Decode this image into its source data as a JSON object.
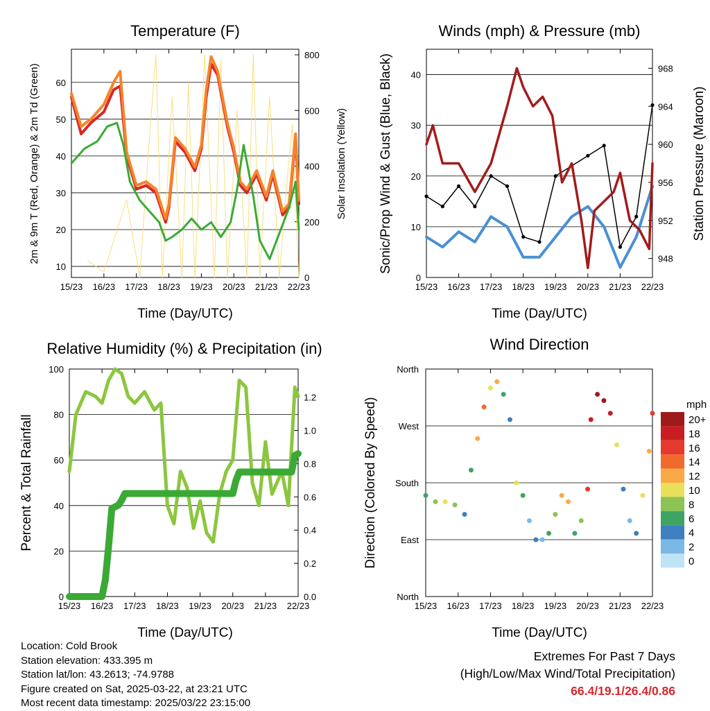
{
  "panels": {
    "temperature": {
      "title": "Temperature (F)",
      "ylabel_left": "2m & 9m T (Red, Orange) & 2m Td (Green)",
      "ylabel_right": "Solar Insolation (Yellow)",
      "xlabel": "Time (Day/UTC)"
    },
    "winds": {
      "title": "Winds (mph) & Pressure (mb)",
      "ylabel_left": "Sonic/Prop Wind & Gust (Blue, Black)",
      "ylabel_right": "Station Pressure (Maroon)",
      "xlabel": "Time (Day/UTC)"
    },
    "humidity": {
      "title": "Relative Humidity (%) & Precipitation (in)",
      "ylabel_left": "Percent & Total Rainfall",
      "xlabel": "Time (Day/UTC)"
    },
    "direction": {
      "title": "Wind Direction",
      "ylabel_left": "Direction (Colored By Speed)",
      "xlabel": "Time (Day/UTC)",
      "legend_title": "mph",
      "legend_labels": [
        "20+",
        "18",
        "16",
        "14",
        "12",
        "10",
        "8",
        "6",
        "4",
        "2",
        "0"
      ],
      "legend_colors": [
        "#9e1a1a",
        "#c81e23",
        "#e53a2d",
        "#f06a2e",
        "#fba947",
        "#e8df5a",
        "#8cc354",
        "#3fa463",
        "#3f7fc0",
        "#7cb8e6",
        "#bde3f5"
      ]
    }
  },
  "footer": {
    "location": "Location: Cold Brook",
    "elevation": "Station elevation: 433.395 m",
    "latlon": "Station lat/lon: 43.2613; -74.9788",
    "created": "Figure created on Sat, 2025-03-22, at 23:21 UTC",
    "recent": "Most recent data timestamp: 2025/03/22 23:15:00",
    "extremes_title": "Extremes For Past 7 Days",
    "extremes_sub": "(High/Low/Max Wind/Total Precipitation)",
    "extremes_values": "66.4/19.1/26.4/0.86"
  },
  "chart_data": [
    {
      "type": "line",
      "id": "temperature",
      "x_ticks": [
        "15/23",
        "16/23",
        "17/23",
        "18/23",
        "19/23",
        "20/23",
        "21/23",
        "22/23"
      ],
      "y_left_ticks": [
        10,
        20,
        30,
        40,
        50,
        60
      ],
      "y_left_range": [
        7,
        69
      ],
      "y_right_ticks": [
        0,
        200,
        400,
        600,
        800
      ],
      "y_right_range": [
        0,
        820
      ],
      "series": [
        {
          "name": "2m T",
          "color": "#d62728",
          "x": [
            0,
            0.3,
            0.6,
            1.0,
            1.3,
            1.5,
            1.7,
            2.0,
            2.3,
            2.6,
            2.9,
            3.0,
            3.2,
            3.5,
            3.8,
            4.0,
            4.15,
            4.3,
            4.5,
            4.8,
            5.0,
            5.2,
            5.4,
            5.7,
            6.0,
            6.2,
            6.5,
            6.7,
            6.9,
            7.0
          ],
          "y": [
            56,
            46,
            49,
            52,
            58,
            59,
            40,
            31,
            32,
            30,
            22,
            26,
            44,
            41,
            36,
            42,
            56,
            65,
            62,
            48,
            41,
            32,
            30,
            35,
            28,
            35,
            24,
            26,
            45,
            27
          ]
        },
        {
          "name": "9m T",
          "color": "#f5842c",
          "x": [
            0,
            0.3,
            0.6,
            1.0,
            1.3,
            1.5,
            1.7,
            2.0,
            2.3,
            2.6,
            2.9,
            3.0,
            3.2,
            3.5,
            3.8,
            4.0,
            4.15,
            4.3,
            4.5,
            4.8,
            5.0,
            5.2,
            5.4,
            5.7,
            6.0,
            6.2,
            6.5,
            6.7,
            6.9,
            7.0
          ],
          "y": [
            57,
            48,
            50,
            54,
            60,
            63,
            41,
            32,
            33,
            31,
            23,
            27,
            45,
            42,
            37,
            43,
            58,
            67,
            63,
            49,
            42,
            33,
            31,
            36,
            29,
            36,
            25,
            27,
            46,
            28
          ]
        },
        {
          "name": "2m Td",
          "color": "#3aaa35",
          "x": [
            0,
            0.4,
            0.8,
            1.1,
            1.4,
            1.6,
            1.8,
            2.1,
            2.4,
            2.7,
            2.9,
            3.1,
            3.4,
            3.7,
            4.0,
            4.3,
            4.6,
            4.9,
            5.1,
            5.3,
            5.6,
            5.8,
            6.1,
            6.4,
            6.7,
            6.9,
            7.0
          ],
          "y": [
            38,
            42,
            44,
            48,
            49,
            43,
            33,
            28,
            25,
            22,
            17,
            18,
            20,
            23,
            20,
            22,
            18,
            22,
            31,
            43,
            29,
            17,
            12,
            19,
            26,
            33,
            20
          ]
        },
        {
          "name": "Solar Insolation",
          "color": "#f7dc6f",
          "axis": "right",
          "x": [
            0.5,
            1.0,
            1.7,
            2.1,
            2.4,
            2.6,
            2.8,
            3.1,
            3.4,
            3.6,
            3.8,
            4.1,
            4.4,
            4.6,
            4.8,
            5.1,
            5.4,
            5.6,
            5.8,
            6.1,
            6.4,
            6.6,
            6.8,
            7.0
          ],
          "y": [
            60,
            20,
            280,
            0,
            500,
            800,
            0,
            650,
            0,
            700,
            0,
            800,
            0,
            780,
            0,
            600,
            0,
            800,
            0,
            650,
            0,
            300,
            550,
            0
          ]
        }
      ]
    },
    {
      "type": "line",
      "id": "winds",
      "x_ticks": [
        "15/23",
        "16/23",
        "17/23",
        "18/23",
        "19/23",
        "20/23",
        "21/23",
        "22/23"
      ],
      "y_left_ticks": [
        0,
        10,
        20,
        30,
        40
      ],
      "y_left_range": [
        0,
        45
      ],
      "y_right_ticks": [
        948,
        952,
        956,
        960,
        964,
        968
      ],
      "y_right_range": [
        946,
        970
      ],
      "series": [
        {
          "name": "Sonic/Prop Wind",
          "color": "#4a8fd4",
          "x": [
            0,
            0.5,
            1,
            1.5,
            2,
            2.5,
            3,
            3.5,
            4,
            4.5,
            5,
            5.5,
            6,
            6.5,
            7
          ],
          "y": [
            8,
            6,
            9,
            7,
            12,
            10,
            4,
            4,
            8,
            12,
            14,
            10,
            2,
            8,
            18
          ]
        },
        {
          "name": "Gust",
          "color": "#000000",
          "x": [
            0,
            0.5,
            1,
            1.5,
            2,
            2.5,
            3,
            3.5,
            4,
            4.5,
            5,
            5.5,
            6,
            6.5,
            7
          ],
          "y": [
            16,
            14,
            18,
            14,
            20,
            18,
            8,
            7,
            20,
            22,
            24,
            26,
            6,
            12,
            34
          ]
        },
        {
          "name": "Station Pressure",
          "color": "#a31b1b",
          "axis": "right",
          "x": [
            0,
            0.2,
            0.5,
            1.0,
            1.5,
            2.0,
            2.5,
            2.8,
            3.0,
            3.3,
            3.6,
            3.9,
            4.2,
            4.5,
            4.8,
            5.0,
            5.2,
            5.5,
            5.8,
            6.0,
            6.3,
            6.6,
            6.9,
            7.0
          ],
          "y": [
            960,
            962,
            958,
            958,
            955,
            958,
            964,
            968,
            966,
            964,
            965,
            963,
            956,
            958,
            952,
            947,
            953,
            954,
            955,
            957,
            952,
            951,
            949,
            958
          ]
        }
      ]
    },
    {
      "type": "line",
      "id": "humidity",
      "x_ticks": [
        "15/23",
        "16/23",
        "17/23",
        "18/23",
        "19/23",
        "20/23",
        "21/23",
        "22/23"
      ],
      "y_left_ticks": [
        0,
        20,
        40,
        60,
        80,
        100
      ],
      "y_left_range": [
        0,
        100
      ],
      "y_right_ticks": [
        0.0,
        0.2,
        0.4,
        0.6,
        0.8,
        1.0,
        1.2
      ],
      "y_right_range": [
        0,
        1.37
      ],
      "series": [
        {
          "name": "Relative Humidity",
          "color": "#8cc63f",
          "x": [
            0,
            0.2,
            0.5,
            0.8,
            1.0,
            1.2,
            1.4,
            1.6,
            1.8,
            2.0,
            2.3,
            2.6,
            2.8,
            3.0,
            3.2,
            3.4,
            3.6,
            3.8,
            4.0,
            4.2,
            4.4,
            4.6,
            4.8,
            5.0,
            5.2,
            5.4,
            5.6,
            5.8,
            6.0,
            6.2,
            6.5,
            6.7,
            6.9,
            7.0
          ],
          "y": [
            55,
            80,
            90,
            88,
            85,
            95,
            100,
            98,
            88,
            85,
            90,
            82,
            85,
            40,
            32,
            55,
            48,
            30,
            42,
            28,
            24,
            45,
            55,
            60,
            95,
            92,
            50,
            40,
            68,
            45,
            55,
            40,
            92,
            88
          ]
        },
        {
          "name": "Total Precipitation",
          "color": "#3aaa35",
          "axis": "right",
          "x": [
            0,
            0.5,
            1.0,
            1.1,
            1.2,
            1.3,
            1.5,
            1.6,
            1.7,
            2.0,
            3.0,
            4.0,
            5.0,
            5.1,
            5.2,
            5.5,
            6.0,
            6.5,
            6.8,
            6.9,
            7.0
          ],
          "y": [
            0,
            0,
            0,
            0.1,
            0.3,
            0.53,
            0.55,
            0.58,
            0.62,
            0.62,
            0.62,
            0.62,
            0.62,
            0.7,
            0.75,
            0.75,
            0.75,
            0.75,
            0.75,
            0.85,
            0.86
          ]
        }
      ]
    },
    {
      "type": "scatter",
      "id": "direction",
      "x_ticks": [
        "15/23",
        "16/23",
        "17/23",
        "18/23",
        "19/23",
        "20/23",
        "21/23",
        "22/23"
      ],
      "y_ticks": [
        "North",
        "West",
        "South",
        "East",
        "North"
      ],
      "y_range": [
        0,
        360
      ],
      "series": [
        {
          "name": "Wind Direction",
          "x": [
            0,
            0.3,
            0.6,
            0.9,
            1.2,
            1.4,
            1.6,
            1.8,
            2.0,
            2.2,
            2.4,
            2.6,
            2.8,
            3.0,
            3.2,
            3.4,
            3.6,
            3.8,
            4.0,
            4.2,
            4.4,
            4.6,
            4.8,
            5.0,
            5.1,
            5.3,
            5.5,
            5.7,
            5.9,
            6.1,
            6.3,
            6.5,
            6.7,
            6.9,
            7.0
          ],
          "y": [
            160,
            150,
            150,
            145,
            130,
            200,
            250,
            300,
            330,
            340,
            320,
            280,
            180,
            160,
            120,
            90,
            90,
            100,
            130,
            160,
            150,
            100,
            120,
            170,
            280,
            320,
            310,
            290,
            240,
            170,
            120,
            100,
            160,
            230,
            290
          ],
          "speed": [
            6,
            8,
            10,
            8,
            4,
            6,
            12,
            14,
            10,
            12,
            6,
            4,
            10,
            6,
            2,
            4,
            2,
            6,
            8,
            12,
            12,
            6,
            8,
            16,
            18,
            20,
            20,
            18,
            10,
            4,
            2,
            4,
            10,
            12,
            16
          ]
        }
      ]
    }
  ]
}
